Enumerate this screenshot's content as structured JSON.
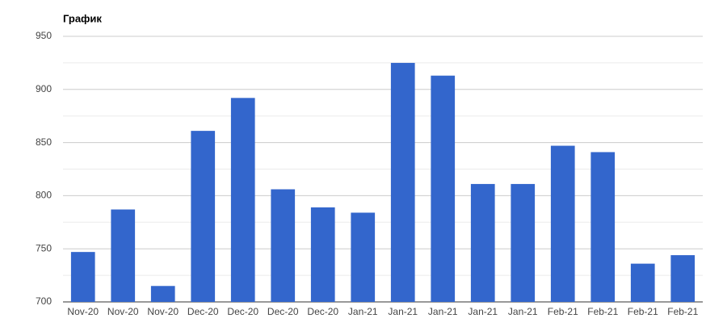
{
  "chart_data": {
    "type": "bar",
    "title": "График",
    "categories": [
      "Nov-20",
      "Nov-20",
      "Nov-20",
      "Dec-20",
      "Dec-20",
      "Dec-20",
      "Dec-20",
      "Jan-21",
      "Jan-21",
      "Jan-21",
      "Jan-21",
      "Jan-21",
      "Feb-21",
      "Feb-21",
      "Feb-21",
      "Feb-21"
    ],
    "values": [
      747,
      787,
      715,
      861,
      892,
      806,
      789,
      784,
      925,
      913,
      811,
      811,
      847,
      841,
      736,
      744
    ],
    "color": "#3366cc",
    "ylim": [
      700,
      950
    ],
    "yticks": [
      700,
      750,
      800,
      850,
      900,
      950
    ],
    "grid": true
  }
}
